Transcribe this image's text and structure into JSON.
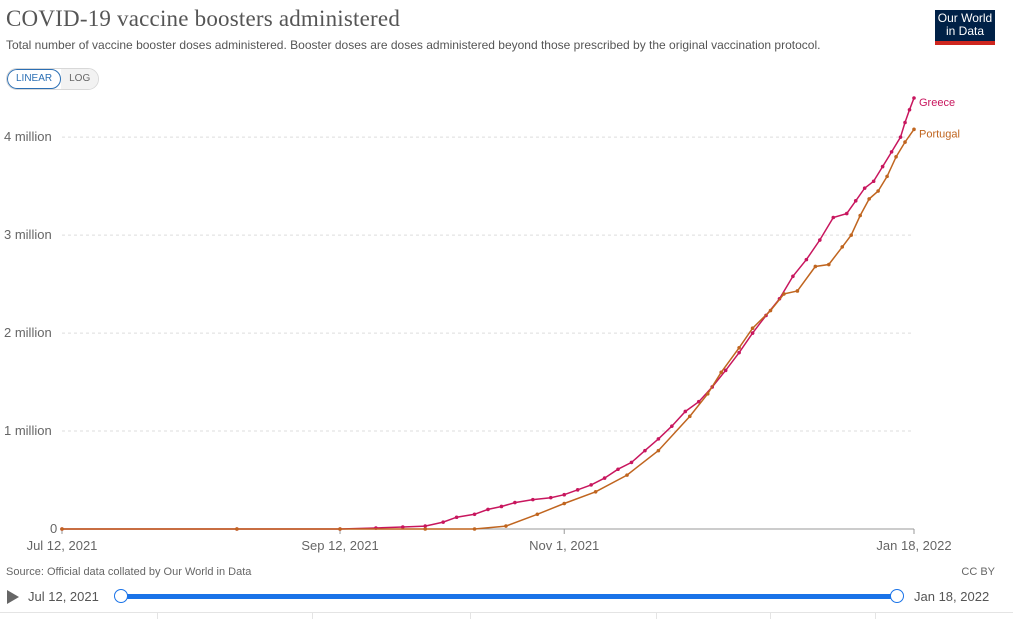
{
  "header": {
    "title": "COVID-19 vaccine boosters administered",
    "subtitle": "Total number of vaccine booster doses administered. Booster doses are doses administered beyond those prescribed by the original vaccination protocol.",
    "logo_line1": "Our World",
    "logo_line2": "in Data"
  },
  "controls": {
    "linear_label": "LINEAR",
    "log_label": "LOG",
    "active": "linear"
  },
  "footer": {
    "source": "Source: Official data collated by Our World in Data",
    "license": "CC BY"
  },
  "timeline": {
    "start_label": "Jul 12, 2021",
    "end_label": "Jan 18, 2022"
  },
  "colors": {
    "greece": "#c8165e",
    "portugal": "#c0651f",
    "grid": "#dddddd",
    "axis": "#999999"
  },
  "chart_data": {
    "type": "line",
    "title": "COVID-19 vaccine boosters administered",
    "ylim": [
      0,
      4400000
    ],
    "y_ticks": [
      0,
      1000000,
      2000000,
      3000000,
      4000000
    ],
    "y_tick_labels": [
      "0",
      "1 million",
      "2 million",
      "3 million",
      "4 million"
    ],
    "x_ticks": [
      "2021-07-12",
      "2021-09-12",
      "2021-11-01",
      "2022-01-18"
    ],
    "x_tick_labels": [
      "Jul 12, 2021",
      "Sep 12, 2021",
      "Nov 1, 2021",
      "Jan 18, 2022"
    ],
    "xlim": [
      "2021-07-12",
      "2022-01-18"
    ],
    "grid": true,
    "legend": "end-of-line labels",
    "series": [
      {
        "name": "Greece",
        "points": [
          [
            "2021-07-12",
            0
          ],
          [
            "2021-08-20",
            0
          ],
          [
            "2021-09-12",
            0
          ],
          [
            "2021-09-20",
            10000
          ],
          [
            "2021-09-26",
            20000
          ],
          [
            "2021-10-01",
            30000
          ],
          [
            "2021-10-05",
            70000
          ],
          [
            "2021-10-08",
            120000
          ],
          [
            "2021-10-12",
            150000
          ],
          [
            "2021-10-15",
            200000
          ],
          [
            "2021-10-18",
            230000
          ],
          [
            "2021-10-21",
            270000
          ],
          [
            "2021-10-25",
            300000
          ],
          [
            "2021-10-29",
            320000
          ],
          [
            "2021-11-01",
            350000
          ],
          [
            "2021-11-04",
            400000
          ],
          [
            "2021-11-07",
            450000
          ],
          [
            "2021-11-10",
            520000
          ],
          [
            "2021-11-13",
            610000
          ],
          [
            "2021-11-16",
            680000
          ],
          [
            "2021-11-19",
            800000
          ],
          [
            "2021-11-22",
            920000
          ],
          [
            "2021-11-25",
            1050000
          ],
          [
            "2021-11-28",
            1200000
          ],
          [
            "2021-12-01",
            1300000
          ],
          [
            "2021-12-04",
            1450000
          ],
          [
            "2021-12-07",
            1620000
          ],
          [
            "2021-12-10",
            1800000
          ],
          [
            "2021-12-13",
            2000000
          ],
          [
            "2021-12-16",
            2180000
          ],
          [
            "2021-12-19",
            2350000
          ],
          [
            "2021-12-22",
            2580000
          ],
          [
            "2021-12-25",
            2750000
          ],
          [
            "2021-12-28",
            2950000
          ],
          [
            "2021-12-31",
            3180000
          ],
          [
            "2022-01-03",
            3220000
          ],
          [
            "2022-01-05",
            3350000
          ],
          [
            "2022-01-07",
            3480000
          ],
          [
            "2022-01-09",
            3550000
          ],
          [
            "2022-01-11",
            3700000
          ],
          [
            "2022-01-13",
            3850000
          ],
          [
            "2022-01-15",
            4000000
          ],
          [
            "2022-01-16",
            4150000
          ],
          [
            "2022-01-17",
            4280000
          ],
          [
            "2022-01-18",
            4400000
          ]
        ]
      },
      {
        "name": "Portugal",
        "points": [
          [
            "2021-07-12",
            0
          ],
          [
            "2021-08-20",
            0
          ],
          [
            "2021-09-12",
            0
          ],
          [
            "2021-10-01",
            0
          ],
          [
            "2021-10-12",
            0
          ],
          [
            "2021-10-19",
            30000
          ],
          [
            "2021-10-26",
            150000
          ],
          [
            "2021-11-01",
            260000
          ],
          [
            "2021-11-08",
            380000
          ],
          [
            "2021-11-15",
            550000
          ],
          [
            "2021-11-22",
            800000
          ],
          [
            "2021-11-29",
            1150000
          ],
          [
            "2021-12-03",
            1380000
          ],
          [
            "2021-12-06",
            1600000
          ],
          [
            "2021-12-10",
            1850000
          ],
          [
            "2021-12-13",
            2050000
          ],
          [
            "2021-12-17",
            2230000
          ],
          [
            "2021-12-20",
            2400000
          ],
          [
            "2021-12-23",
            2430000
          ],
          [
            "2021-12-27",
            2680000
          ],
          [
            "2021-12-30",
            2700000
          ],
          [
            "2022-01-02",
            2880000
          ],
          [
            "2022-01-04",
            3000000
          ],
          [
            "2022-01-06",
            3200000
          ],
          [
            "2022-01-08",
            3370000
          ],
          [
            "2022-01-10",
            3450000
          ],
          [
            "2022-01-12",
            3600000
          ],
          [
            "2022-01-14",
            3800000
          ],
          [
            "2022-01-16",
            3950000
          ],
          [
            "2022-01-18",
            4080000
          ]
        ]
      }
    ]
  }
}
